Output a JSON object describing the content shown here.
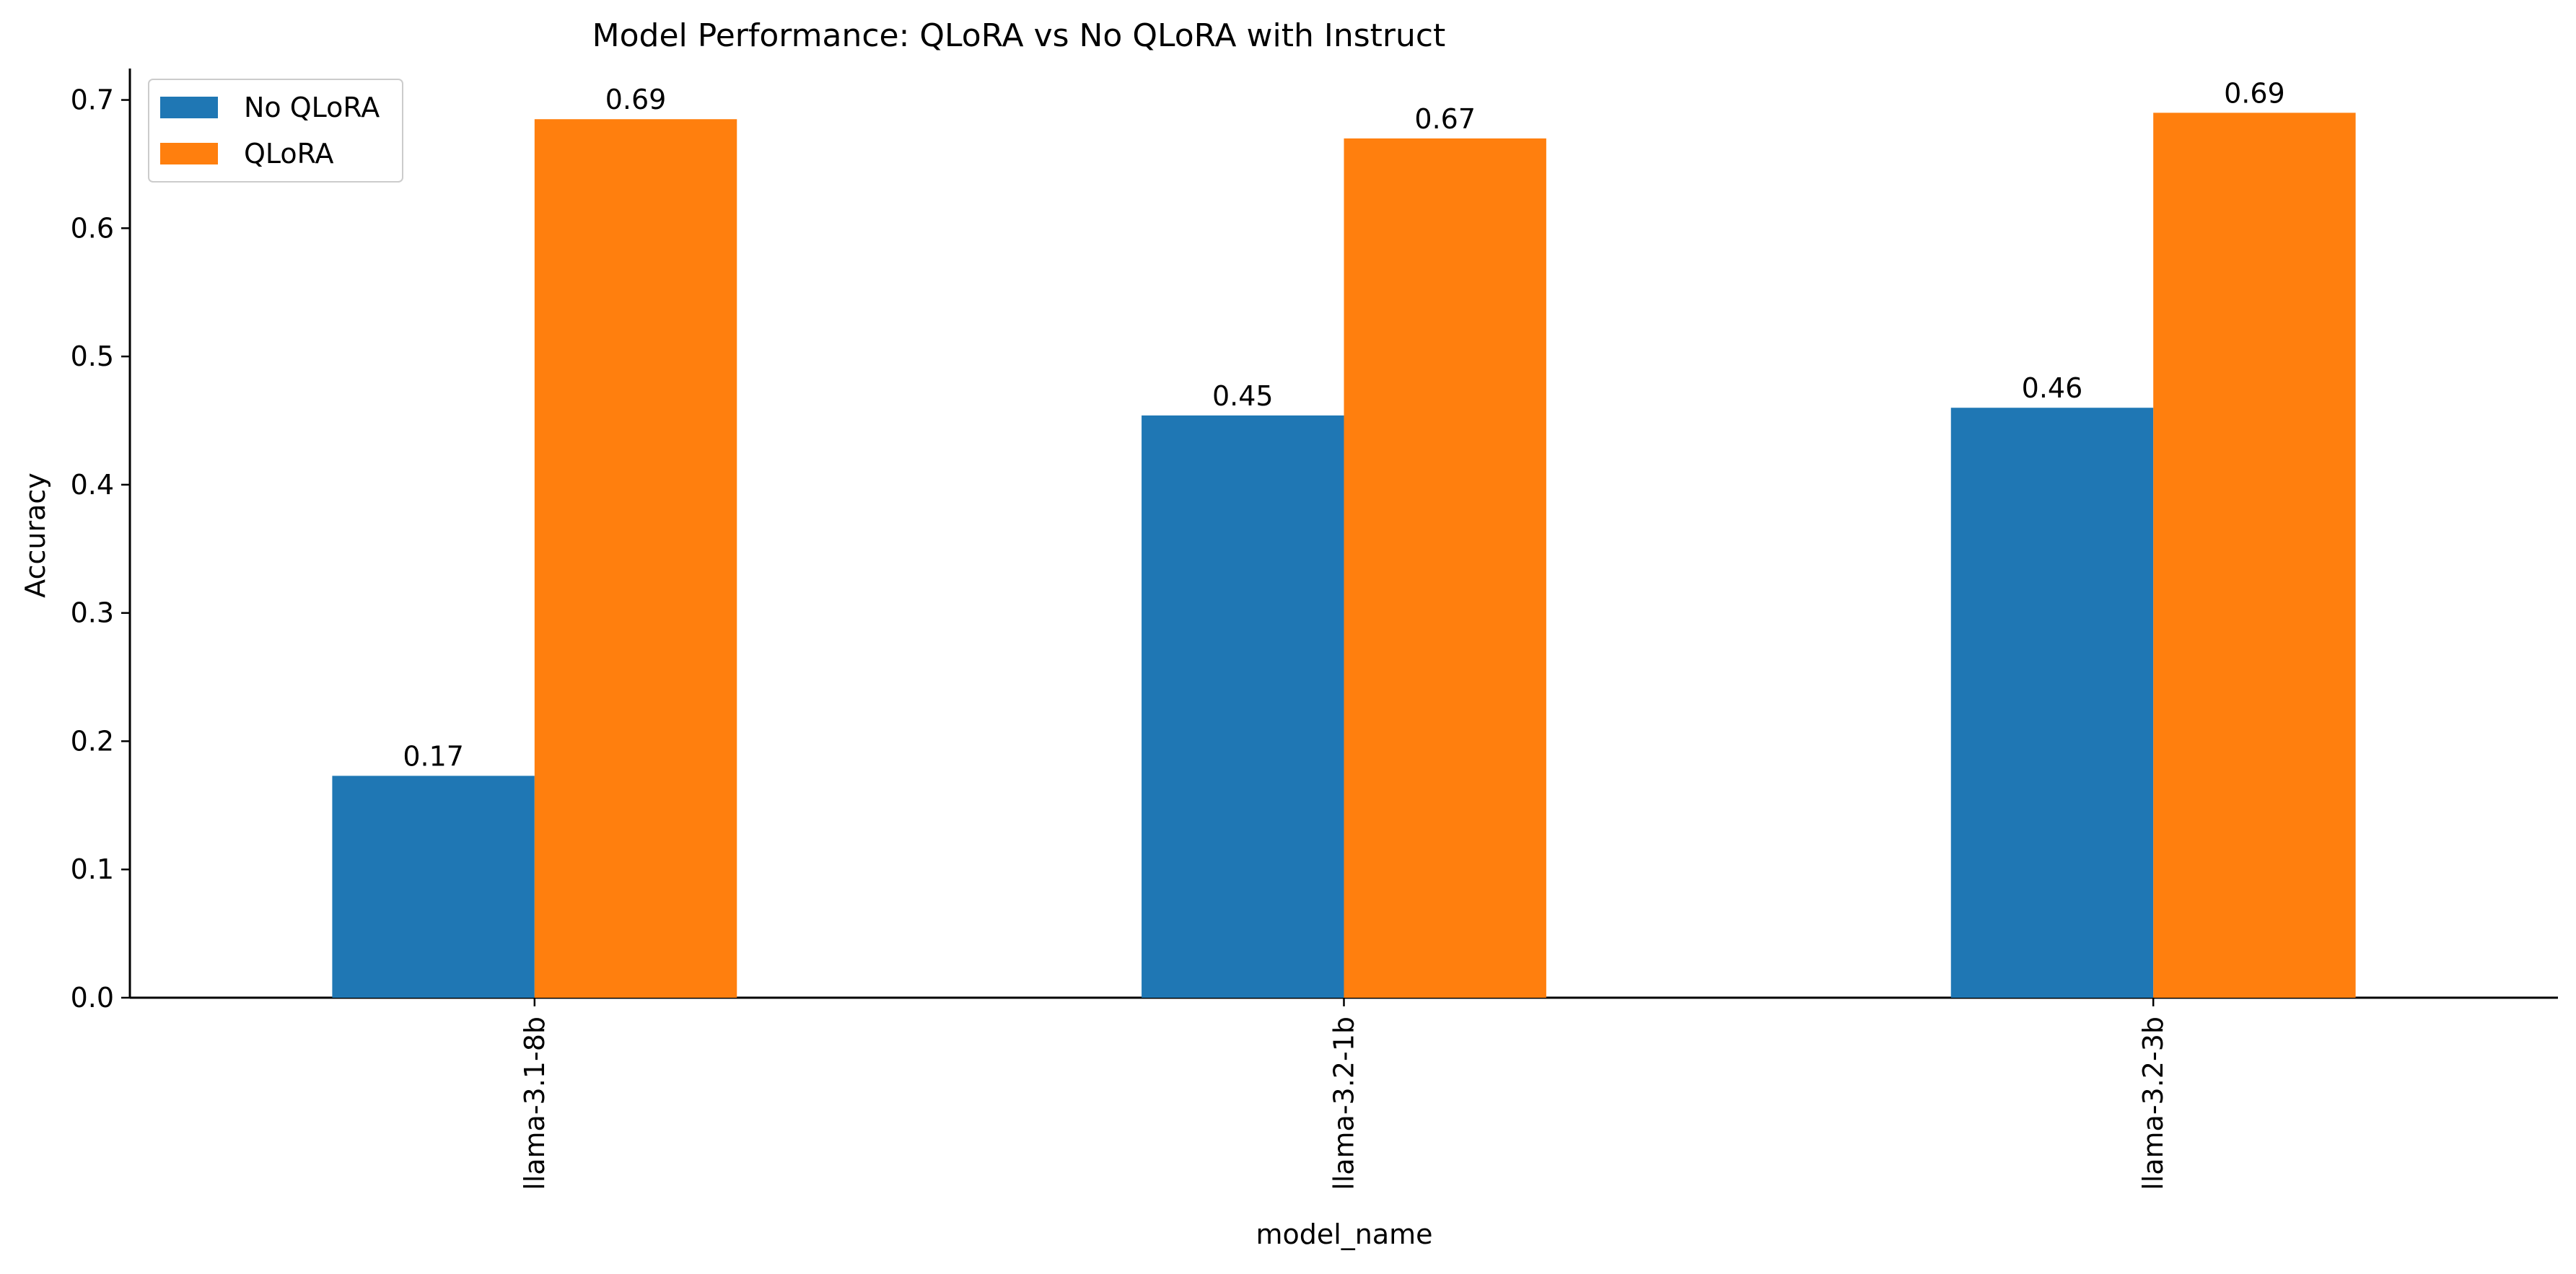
{
  "chart_data": {
    "type": "bar",
    "title": "Model Performance: QLoRA vs No QLoRA with Instruct",
    "xlabel": "model_name",
    "ylabel": "Accuracy",
    "categories": [
      "llama-3.1-8b",
      "llama-3.2-1b",
      "llama-3.2-3b"
    ],
    "series": [
      {
        "name": "No QLoRA",
        "color": "#1f77b4",
        "values": [
          0.173,
          0.454,
          0.46
        ],
        "labels": [
          "0.17",
          "0.45",
          "0.46"
        ]
      },
      {
        "name": "QLoRA",
        "color": "#ff7f0e",
        "values": [
          0.685,
          0.67,
          0.69
        ],
        "labels": [
          "0.69",
          "0.67",
          "0.69"
        ]
      }
    ],
    "ylim": [
      0,
      0.7245
    ],
    "yticks": [
      "0.0",
      "0.1",
      "0.2",
      "0.3",
      "0.4",
      "0.5",
      "0.6",
      "0.7"
    ],
    "legend": "top-left",
    "grid": false
  }
}
